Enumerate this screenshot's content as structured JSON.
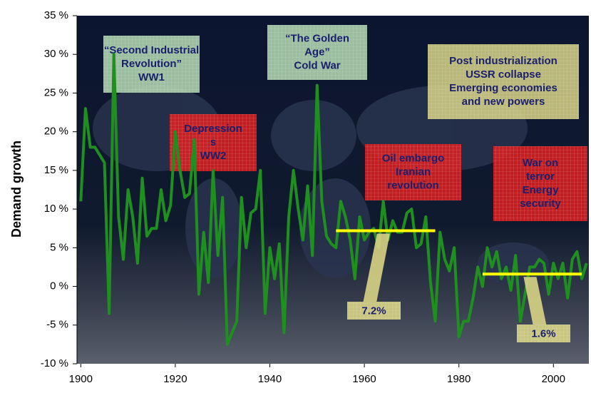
{
  "chart_data": {
    "type": "line",
    "y_label": "Demand growth",
    "x": [
      1900,
      1901,
      1902,
      1903,
      1904,
      1905,
      1906,
      1907,
      1908,
      1909,
      1910,
      1911,
      1912,
      1913,
      1914,
      1915,
      1916,
      1917,
      1918,
      1919,
      1920,
      1921,
      1922,
      1923,
      1924,
      1925,
      1926,
      1927,
      1928,
      1929,
      1930,
      1931,
      1932,
      1933,
      1934,
      1935,
      1936,
      1937,
      1938,
      1939,
      1940,
      1941,
      1942,
      1943,
      1944,
      1945,
      1946,
      1947,
      1948,
      1949,
      1950,
      1951,
      1952,
      1953,
      1954,
      1955,
      1956,
      1957,
      1958,
      1959,
      1960,
      1961,
      1962,
      1963,
      1964,
      1965,
      1966,
      1967,
      1968,
      1969,
      1970,
      1971,
      1972,
      1973,
      1974,
      1975,
      1976,
      1977,
      1978,
      1979,
      1980,
      1981,
      1982,
      1983,
      1984,
      1985,
      1986,
      1987,
      1988,
      1989,
      1990,
      1991,
      1992,
      1993,
      1994,
      1995,
      1996,
      1997,
      1998,
      1999,
      2000,
      2001,
      2002,
      2003,
      2004,
      2005,
      2006,
      2007
    ],
    "values": [
      11,
      23,
      18,
      18,
      17,
      16,
      -3.5,
      30,
      9,
      3.5,
      12.5,
      9,
      3,
      14,
      6.5,
      7.5,
      7.5,
      12.5,
      8.5,
      10.5,
      20,
      15,
      11.5,
      12,
      19,
      -1,
      7,
      0.5,
      15,
      4,
      11.5,
      -7.5,
      -6,
      -4.5,
      11.5,
      5,
      9.5,
      10,
      15,
      -3.5,
      5,
      1,
      5.5,
      -6,
      9,
      15,
      10,
      6,
      13,
      4,
      26,
      11,
      6.5,
      5.5,
      5,
      11,
      9,
      6,
      1,
      9,
      6,
      7,
      7.5,
      5,
      11,
      6,
      8.5,
      7,
      7,
      9.5,
      10,
      5,
      5.5,
      9,
      0.5,
      -4.5,
      7,
      3.5,
      2,
      5,
      -6.5,
      -4.5,
      -4.5,
      -1.5,
      2.5,
      0,
      5,
      2.5,
      4.5,
      1,
      2.5,
      -0.5,
      4,
      -4.5,
      -1,
      2.5,
      2.5,
      3.5,
      3,
      -1,
      3,
      1,
      3,
      -1.5,
      3.5,
      4.5,
      1,
      3
    ],
    "color": "#1f8f1f",
    "xlim": [
      1899.2,
      2007.5
    ],
    "xticks": [
      1900,
      1920,
      1940,
      1960,
      1980,
      2000
    ],
    "ylim": [
      -10,
      35
    ],
    "yticks": [
      {
        "value": -10,
        "label": "-10 %"
      },
      {
        "value": -5,
        "label": "-5 %"
      },
      {
        "value": 0,
        "label": "0 %"
      },
      {
        "value": 5,
        "label": "5 %"
      },
      {
        "value": 10,
        "label": "10 %"
      },
      {
        "value": 15,
        "label": "15 %"
      },
      {
        "value": 20,
        "label": "20 %"
      },
      {
        "value": 25,
        "label": "25 %"
      },
      {
        "value": 30,
        "label": "30 %"
      },
      {
        "value": 35,
        "label": "35 %"
      }
    ],
    "grid": false,
    "averages": [
      {
        "start": 1954,
        "end": 1975,
        "value": 7.2,
        "label": "7.2%",
        "color": "#ffff00"
      },
      {
        "start": 1985,
        "end": 2006,
        "value": 1.6,
        "label": "1.6%",
        "color": "#ffff00"
      }
    ],
    "annotations": [
      {
        "lines": [
          "“Second Industrial",
          "Revolution”",
          "WW1"
        ],
        "color": "#b6dcb4"
      },
      {
        "lines": [
          "“The Golden",
          "Age”",
          "Cold War"
        ],
        "color": "#b6dcb4"
      },
      {
        "lines": [
          "Post industrialization",
          "USSR collapse",
          "Emerging economies",
          "and new powers"
        ],
        "color": "#d8d486"
      },
      {
        "lines": [
          "Depression",
          "s",
          "WW2"
        ],
        "color": "#e02020"
      },
      {
        "lines": [
          "Oil embargo",
          "Iranian",
          "revolution"
        ],
        "color": "#e02020"
      },
      {
        "lines": [
          "War on",
          "terror",
          "Energy",
          "security"
        ],
        "color": "#e02020"
      }
    ]
  }
}
